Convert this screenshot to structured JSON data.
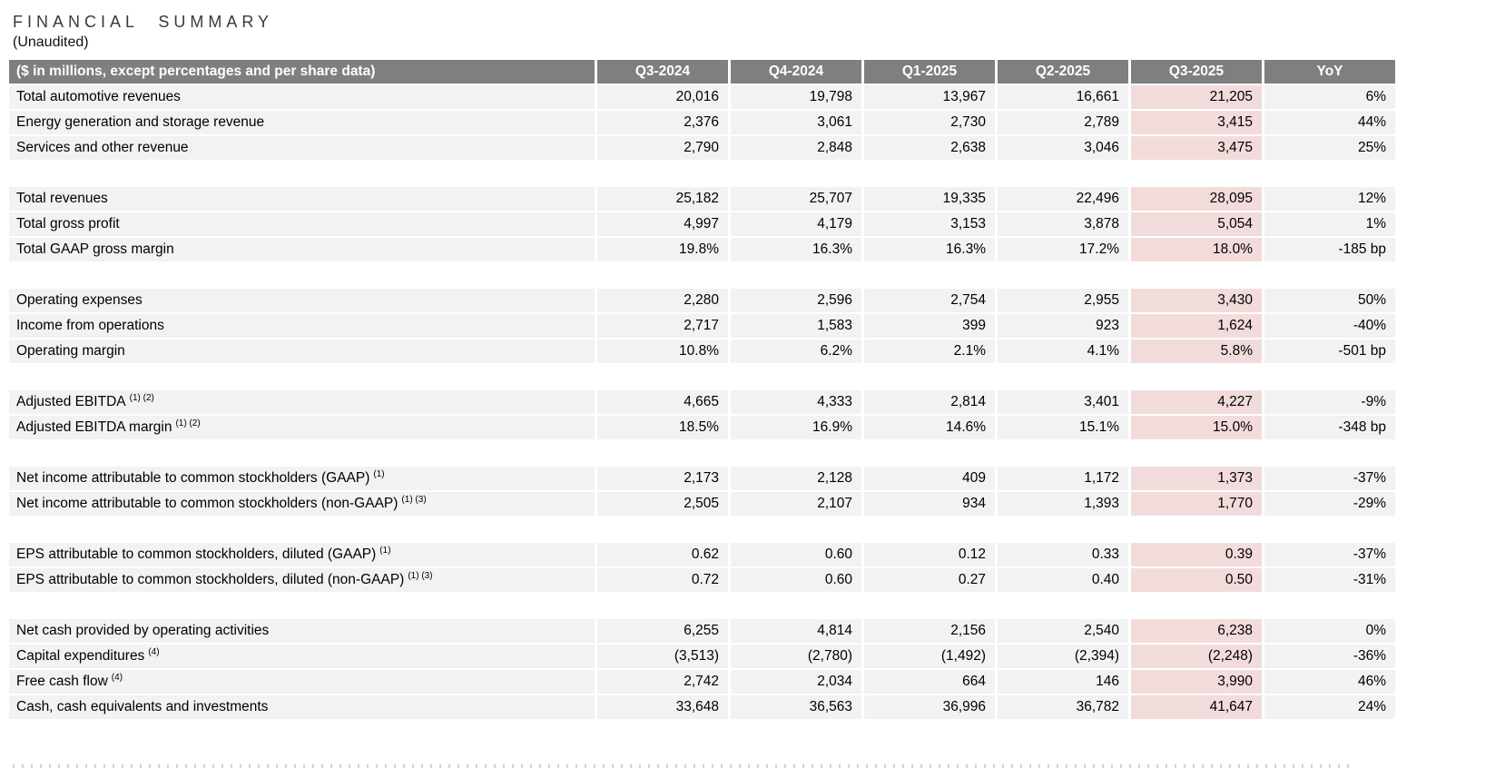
{
  "page": {
    "title": "FINANCIAL SUMMARY",
    "subtitle": "(Unaudited)"
  },
  "colors": {
    "header_bg": "#7f7f7f",
    "header_text": "#ffffff",
    "row_bg": "#f2f2f2",
    "highlight_bg": "#f2dcdb",
    "title_text": "#3a3a3a"
  },
  "table": {
    "header": [
      "($ in millions, except percentages and per share data)",
      "Q3-2024",
      "Q4-2024",
      "Q1-2025",
      "Q2-2025",
      "Q3-2025",
      "YoY"
    ],
    "highlight_column": "Q3-2025",
    "groups": [
      {
        "rows": [
          {
            "label": "Total automotive revenues",
            "sup": "",
            "cells": [
              "20,016",
              "19,798",
              "13,967",
              "16,661",
              "21,205",
              "6%"
            ]
          },
          {
            "label": "Energy generation and storage revenue",
            "sup": "",
            "cells": [
              "2,376",
              "3,061",
              "2,730",
              "2,789",
              "3,415",
              "44%"
            ]
          },
          {
            "label": "Services and other revenue",
            "sup": "",
            "cells": [
              "2,790",
              "2,848",
              "2,638",
              "3,046",
              "3,475",
              "25%"
            ]
          }
        ]
      },
      {
        "rows": [
          {
            "label": "Total revenues",
            "sup": "",
            "cells": [
              "25,182",
              "25,707",
              "19,335",
              "22,496",
              "28,095",
              "12%"
            ]
          },
          {
            "label": "Total gross profit",
            "sup": "",
            "cells": [
              "4,997",
              "4,179",
              "3,153",
              "3,878",
              "5,054",
              "1%"
            ]
          },
          {
            "label": "Total GAAP gross margin",
            "sup": "",
            "cells": [
              "19.8%",
              "16.3%",
              "16.3%",
              "17.2%",
              "18.0%",
              "-185 bp"
            ]
          }
        ]
      },
      {
        "rows": [
          {
            "label": "Operating expenses",
            "sup": "",
            "cells": [
              "2,280",
              "2,596",
              "2,754",
              "2,955",
              "3,430",
              "50%"
            ]
          },
          {
            "label": "Income from operations",
            "sup": "",
            "cells": [
              "2,717",
              "1,583",
              "399",
              "923",
              "1,624",
              "-40%"
            ]
          },
          {
            "label": "Operating margin",
            "sup": "",
            "cells": [
              "10.8%",
              "6.2%",
              "2.1%",
              "4.1%",
              "5.8%",
              "-501 bp"
            ]
          }
        ]
      },
      {
        "rows": [
          {
            "label": "Adjusted EBITDA",
            "sup": "(1) (2)",
            "cells": [
              "4,665",
              "4,333",
              "2,814",
              "3,401",
              "4,227",
              "-9%"
            ]
          },
          {
            "label": "Adjusted EBITDA margin",
            "sup": "(1) (2)",
            "cells": [
              "18.5%",
              "16.9%",
              "14.6%",
              "15.1%",
              "15.0%",
              "-348 bp"
            ]
          }
        ]
      },
      {
        "rows": [
          {
            "label": "Net income attributable to common stockholders (GAAP)",
            "sup": "(1)",
            "cells": [
              "2,173",
              "2,128",
              "409",
              "1,172",
              "1,373",
              "-37%"
            ]
          },
          {
            "label": "Net income attributable to common stockholders (non-GAAP)",
            "sup": "(1) (3)",
            "cells": [
              "2,505",
              "2,107",
              "934",
              "1,393",
              "1,770",
              "-29%"
            ]
          }
        ]
      },
      {
        "rows": [
          {
            "label": "EPS attributable to common stockholders, diluted (GAAP)",
            "sup": "(1)",
            "cells": [
              "0.62",
              "0.60",
              "0.12",
              "0.33",
              "0.39",
              "-37%"
            ]
          },
          {
            "label": "EPS attributable to common stockholders, diluted (non-GAAP)",
            "sup": "(1) (3)",
            "cells": [
              "0.72",
              "0.60",
              "0.27",
              "0.40",
              "0.50",
              "-31%"
            ]
          }
        ]
      },
      {
        "rows": [
          {
            "label": "Net cash provided by operating activities",
            "sup": "",
            "cells": [
              "6,255",
              "4,814",
              "2,156",
              "2,540",
              "6,238",
              "0%"
            ]
          },
          {
            "label": "Capital expenditures",
            "sup": "(4)",
            "cells": [
              "(3,513)",
              "(2,780)",
              "(1,492)",
              "(2,394)",
              "(2,248)",
              "-36%"
            ]
          },
          {
            "label": "Free cash flow",
            "sup": "(4)",
            "cells": [
              "2,742",
              "2,034",
              "664",
              "146",
              "3,990",
              "46%"
            ]
          },
          {
            "label": "Cash, cash equivalents and investments",
            "sup": "",
            "cells": [
              "33,648",
              "36,563",
              "36,996",
              "36,782",
              "41,647",
              "24%"
            ]
          }
        ]
      }
    ]
  }
}
